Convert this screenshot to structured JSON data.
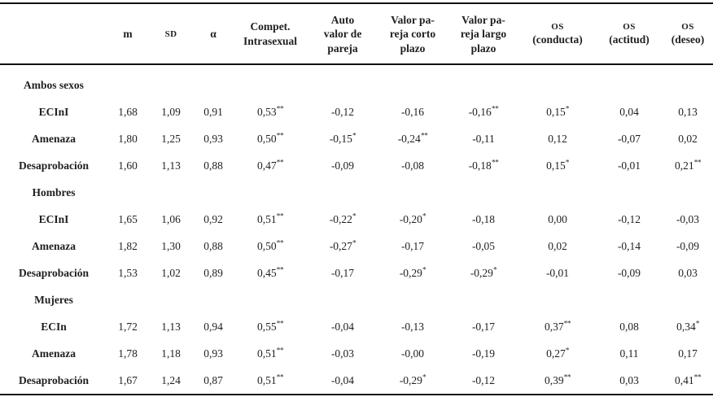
{
  "table": {
    "columns": [
      {
        "label": "",
        "variant": "plain"
      },
      {
        "label": "m",
        "variant": "stat"
      },
      {
        "label": "SD",
        "variant": "smallcaps"
      },
      {
        "label": "α",
        "variant": "stat"
      },
      {
        "label": "Compet.\nIntrasexual",
        "variant": "plain"
      },
      {
        "label": "Auto\nvalor de\npareja",
        "variant": "plain"
      },
      {
        "label": "Valor pa-\nreja corto\nplazo",
        "variant": "plain"
      },
      {
        "label": "Valor pa-\nreja largo\nplazo",
        "variant": "plain"
      },
      {
        "label": "OS\n(conducta)",
        "variant": "os"
      },
      {
        "label": "OS\n(actitud)",
        "variant": "os"
      },
      {
        "label": "OS\n(deseo)",
        "variant": "os"
      }
    ],
    "groups": [
      {
        "label": "Ambos sexos",
        "rows": [
          {
            "label": "ECInI",
            "values": [
              "1,68",
              "1,09",
              "0,91",
              "0,53**",
              "-0,12",
              "-0,16",
              "-0,16**",
              "0,15*",
              "0,04",
              "0,13"
            ]
          },
          {
            "label": "Amenaza",
            "values": [
              "1,80",
              "1,25",
              "0,93",
              "0,50**",
              "-0,15*",
              "-0,24**",
              "-0,11",
              "0,12",
              "-0,07",
              "0,02"
            ]
          },
          {
            "label": "Desaprobación",
            "values": [
              "1,60",
              "1,13",
              "0,88",
              "0,47**",
              "-0,09",
              "-0,08",
              "-0,18**",
              "0,15*",
              "-0,01",
              "0,21**"
            ]
          }
        ]
      },
      {
        "label": "Hombres",
        "rows": [
          {
            "label": "ECInI",
            "values": [
              "1,65",
              "1,06",
              "0,92",
              "0,51**",
              "-0,22*",
              "-0,20*",
              "-0,18",
              "0,00",
              "-0,12",
              "-0,03"
            ]
          },
          {
            "label": "Amenaza",
            "values": [
              "1,82",
              "1,30",
              "0,88",
              "0,50**",
              "-0,27*",
              "-0,17",
              "-0,05",
              "0,02",
              "-0,14",
              "-0,09"
            ]
          },
          {
            "label": "Desaprobación",
            "values": [
              "1,53",
              "1,02",
              "0,89",
              "0,45**",
              "-0,17",
              "-0,29*",
              "-0,29*",
              "-0,01",
              "-0,09",
              "0,03"
            ]
          }
        ]
      },
      {
        "label": "Mujeres",
        "rows": [
          {
            "label": "ECIn",
            "values": [
              "1,72",
              "1,13",
              "0,94",
              "0,55**",
              "-0,04",
              "-0,13",
              "-0,17",
              "0,37**",
              "0,08",
              "0,34*"
            ]
          },
          {
            "label": "Amenaza",
            "values": [
              "1,78",
              "1,18",
              "0,93",
              "0,51**",
              "-0,03",
              "-0,00",
              "-0,19",
              "0,27*",
              "0,11",
              "0,17"
            ]
          },
          {
            "label": "Desaprobación",
            "values": [
              "1,67",
              "1,24",
              "0,87",
              "0,51**",
              "-0,04",
              "-0,29*",
              "-0,12",
              "0,39**",
              "0,03",
              "0,41**"
            ]
          }
        ]
      }
    ]
  }
}
